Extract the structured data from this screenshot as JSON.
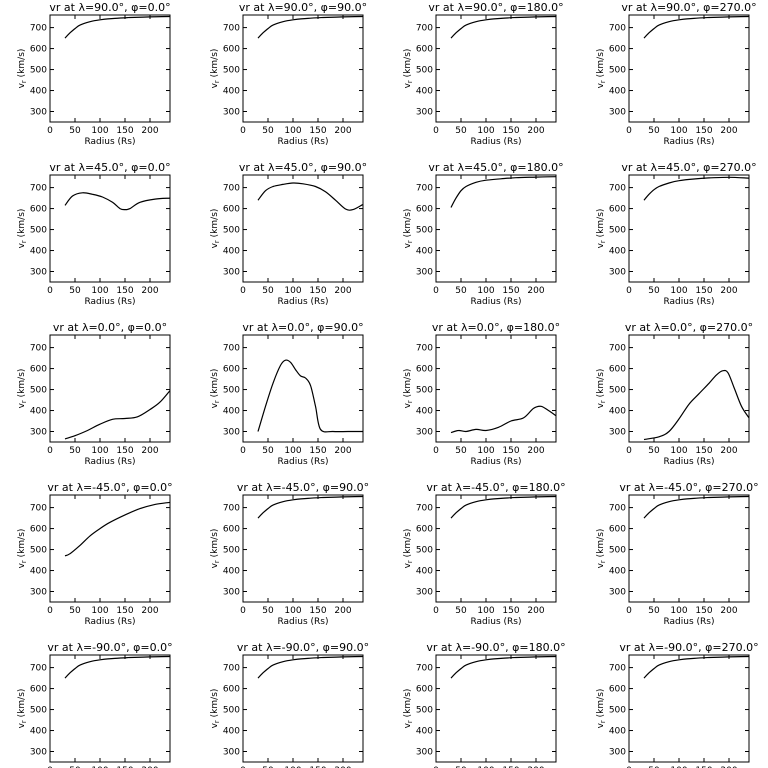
{
  "figure": {
    "xlabel": "Radius (Rs)",
    "ylabel_main": "v",
    "ylabel_sub": "r",
    "ylabel_unit": " (km/s)",
    "xticks": [
      0,
      50,
      100,
      150,
      200
    ],
    "yticks": [
      300,
      400,
      500,
      600,
      700
    ],
    "xlim": [
      0,
      240
    ],
    "ylim": [
      250,
      760
    ]
  },
  "chart_data": [
    {
      "type": "line",
      "title": "vr at λ=90.0°, φ=0.0°",
      "xlabel": "Radius (Rs)",
      "ylabel": "vr (km/s)",
      "xlim": [
        0,
        240
      ],
      "ylim": [
        250,
        760
      ],
      "x": [
        30,
        40,
        50,
        60,
        80,
        100,
        130,
        160,
        200,
        240
      ],
      "y": [
        650,
        675,
        695,
        712,
        728,
        737,
        744,
        748,
        751,
        753
      ]
    },
    {
      "type": "line",
      "title": "vr at λ=90.0°, φ=90.0°",
      "xlabel": "Radius (Rs)",
      "ylabel": "vr (km/s)",
      "xlim": [
        0,
        240
      ],
      "ylim": [
        250,
        760
      ],
      "x": [
        30,
        40,
        50,
        60,
        80,
        100,
        130,
        160,
        200,
        240
      ],
      "y": [
        650,
        675,
        695,
        712,
        728,
        737,
        744,
        748,
        751,
        753
      ]
    },
    {
      "type": "line",
      "title": "vr at λ=90.0°, φ=180.0°",
      "xlabel": "Radius (Rs)",
      "ylabel": "vr (km/s)",
      "xlim": [
        0,
        240
      ],
      "ylim": [
        250,
        760
      ],
      "x": [
        30,
        40,
        50,
        60,
        80,
        100,
        130,
        160,
        200,
        240
      ],
      "y": [
        650,
        675,
        695,
        712,
        728,
        737,
        744,
        748,
        751,
        753
      ]
    },
    {
      "type": "line",
      "title": "vr at λ=90.0°, φ=270.0°",
      "xlabel": "Radius (Rs)",
      "ylabel": "vr (km/s)",
      "xlim": [
        0,
        240
      ],
      "ylim": [
        250,
        760
      ],
      "x": [
        30,
        40,
        50,
        60,
        80,
        100,
        130,
        160,
        200,
        240
      ],
      "y": [
        650,
        675,
        695,
        712,
        728,
        737,
        744,
        748,
        751,
        753
      ]
    },
    {
      "type": "line",
      "title": "vr at λ=45.0°, φ=0.0°",
      "xlabel": "Radius (Rs)",
      "ylabel": "vr (km/s)",
      "xlim": [
        0,
        240
      ],
      "ylim": [
        250,
        760
      ],
      "x": [
        30,
        45,
        65,
        85,
        105,
        125,
        140,
        150,
        160,
        180,
        210,
        240
      ],
      "y": [
        615,
        660,
        675,
        668,
        655,
        630,
        600,
        595,
        600,
        630,
        645,
        650
      ]
    },
    {
      "type": "line",
      "title": "vr at λ=45.0°, φ=90.0°",
      "xlabel": "Radius (Rs)",
      "ylabel": "vr (km/s)",
      "xlim": [
        0,
        240
      ],
      "ylim": [
        250,
        760
      ],
      "x": [
        30,
        45,
        60,
        80,
        100,
        120,
        145,
        165,
        185,
        205,
        220,
        240
      ],
      "y": [
        640,
        685,
        705,
        715,
        722,
        718,
        705,
        680,
        640,
        598,
        595,
        620
      ]
    },
    {
      "type": "line",
      "title": "vr at λ=45.0°, φ=180.0°",
      "xlabel": "Radius (Rs)",
      "ylabel": "vr (km/s)",
      "xlim": [
        0,
        240
      ],
      "ylim": [
        250,
        760
      ],
      "x": [
        30,
        40,
        50,
        60,
        80,
        100,
        130,
        160,
        200,
        240
      ],
      "y": [
        605,
        650,
        685,
        705,
        725,
        735,
        742,
        747,
        750,
        752
      ]
    },
    {
      "type": "line",
      "title": "vr at λ=45.0°, φ=270.0°",
      "xlabel": "Radius (Rs)",
      "ylabel": "vr (km/s)",
      "xlim": [
        0,
        240
      ],
      "ylim": [
        250,
        760
      ],
      "x": [
        30,
        40,
        50,
        60,
        80,
        100,
        130,
        160,
        200,
        240
      ],
      "y": [
        640,
        668,
        690,
        705,
        722,
        733,
        741,
        746,
        749,
        745
      ]
    },
    {
      "type": "line",
      "title": "vr at λ=0.0°, φ=0.0°",
      "xlabel": "Radius (Rs)",
      "ylabel": "vr (km/s)",
      "xlim": [
        0,
        240
      ],
      "ylim": [
        250,
        760
      ],
      "x": [
        30,
        50,
        75,
        100,
        125,
        150,
        175,
        200,
        220,
        240
      ],
      "y": [
        265,
        280,
        305,
        335,
        358,
        362,
        370,
        405,
        440,
        495
      ]
    },
    {
      "type": "line",
      "title": "vr at λ=0.0°, φ=90.0°",
      "xlabel": "Radius (Rs)",
      "ylabel": "vr (km/s)",
      "xlim": [
        0,
        240
      ],
      "ylim": [
        250,
        760
      ],
      "x": [
        30,
        45,
        60,
        75,
        85,
        95,
        105,
        115,
        125,
        135,
        145,
        155,
        180,
        210,
        240
      ],
      "y": [
        300,
        420,
        530,
        615,
        640,
        630,
        595,
        565,
        555,
        520,
        420,
        310,
        300,
        300,
        300
      ]
    },
    {
      "type": "line",
      "title": "vr at λ=0.0°, φ=180.0°",
      "xlabel": "Radius (Rs)",
      "ylabel": "vr (km/s)",
      "xlim": [
        0,
        240
      ],
      "ylim": [
        250,
        760
      ],
      "x": [
        30,
        45,
        60,
        80,
        100,
        125,
        150,
        175,
        195,
        210,
        225,
        240
      ],
      "y": [
        295,
        305,
        300,
        310,
        305,
        320,
        350,
        365,
        410,
        420,
        400,
        375
      ]
    },
    {
      "type": "line",
      "title": "vr at λ=0.0°, φ=270.0°",
      "xlabel": "Radius (Rs)",
      "ylabel": "vr (km/s)",
      "xlim": [
        0,
        240
      ],
      "ylim": [
        250,
        760
      ],
      "x": [
        30,
        60,
        80,
        100,
        120,
        140,
        160,
        175,
        188,
        198,
        210,
        225,
        240
      ],
      "y": [
        262,
        275,
        300,
        360,
        430,
        480,
        530,
        570,
        590,
        580,
        510,
        420,
        365
      ]
    },
    {
      "type": "line",
      "title": "vr at λ=-45.0°, φ=0.0°",
      "xlabel": "Radius (Rs)",
      "ylabel": "vr (km/s)",
      "xlim": [
        0,
        240
      ],
      "ylim": [
        250,
        760
      ],
      "x": [
        30,
        40,
        60,
        80,
        100,
        120,
        150,
        180,
        210,
        240
      ],
      "y": [
        470,
        480,
        520,
        565,
        600,
        630,
        665,
        695,
        715,
        725
      ]
    },
    {
      "type": "line",
      "title": "vr at λ=-45.0°, φ=90.0°",
      "xlabel": "Radius (Rs)",
      "ylabel": "vr (km/s)",
      "xlim": [
        0,
        240
      ],
      "ylim": [
        250,
        760
      ],
      "x": [
        30,
        40,
        50,
        60,
        80,
        100,
        130,
        160,
        200,
        240
      ],
      "y": [
        650,
        675,
        695,
        712,
        728,
        737,
        744,
        748,
        751,
        753
      ]
    },
    {
      "type": "line",
      "title": "vr at λ=-45.0°, φ=180.0°",
      "xlabel": "Radius (Rs)",
      "ylabel": "vr (km/s)",
      "xlim": [
        0,
        240
      ],
      "ylim": [
        250,
        760
      ],
      "x": [
        30,
        40,
        50,
        60,
        80,
        100,
        130,
        160,
        200,
        240
      ],
      "y": [
        650,
        675,
        695,
        712,
        728,
        737,
        744,
        748,
        751,
        753
      ]
    },
    {
      "type": "line",
      "title": "vr at λ=-45.0°, φ=270.0°",
      "xlabel": "Radius (Rs)",
      "ylabel": "vr (km/s)",
      "xlim": [
        0,
        240
      ],
      "ylim": [
        250,
        760
      ],
      "x": [
        30,
        40,
        50,
        60,
        80,
        100,
        130,
        160,
        200,
        240
      ],
      "y": [
        650,
        675,
        695,
        712,
        728,
        737,
        744,
        748,
        751,
        753
      ]
    },
    {
      "type": "line",
      "title": "vr at λ=-90.0°, φ=0.0°",
      "xlabel": "Radius (Rs)",
      "ylabel": "vr (km/s)",
      "xlim": [
        0,
        240
      ],
      "ylim": [
        250,
        760
      ],
      "x": [
        30,
        40,
        50,
        60,
        80,
        100,
        130,
        160,
        200,
        240
      ],
      "y": [
        650,
        675,
        695,
        712,
        728,
        737,
        744,
        748,
        751,
        753
      ]
    },
    {
      "type": "line",
      "title": "vr at λ=-90.0°, φ=90.0°",
      "xlabel": "Radius (Rs)",
      "ylabel": "vr (km/s)",
      "xlim": [
        0,
        240
      ],
      "ylim": [
        250,
        760
      ],
      "x": [
        30,
        40,
        50,
        60,
        80,
        100,
        130,
        160,
        200,
        240
      ],
      "y": [
        650,
        675,
        695,
        712,
        728,
        737,
        744,
        748,
        751,
        753
      ]
    },
    {
      "type": "line",
      "title": "vr at λ=-90.0°, φ=180.0°",
      "xlabel": "Radius (Rs)",
      "ylabel": "vr (km/s)",
      "xlim": [
        0,
        240
      ],
      "ylim": [
        250,
        760
      ],
      "x": [
        30,
        40,
        50,
        60,
        80,
        100,
        130,
        160,
        200,
        240
      ],
      "y": [
        650,
        675,
        695,
        712,
        728,
        737,
        744,
        748,
        751,
        753
      ]
    },
    {
      "type": "line",
      "title": "vr at λ=-90.0°, φ=270.0°",
      "xlabel": "Radius (Rs)",
      "ylabel": "vr (km/s)",
      "xlim": [
        0,
        240
      ],
      "ylim": [
        250,
        760
      ],
      "x": [
        30,
        40,
        50,
        60,
        80,
        100,
        130,
        160,
        200,
        240
      ],
      "y": [
        650,
        675,
        695,
        712,
        728,
        737,
        744,
        748,
        751,
        753
      ]
    }
  ]
}
